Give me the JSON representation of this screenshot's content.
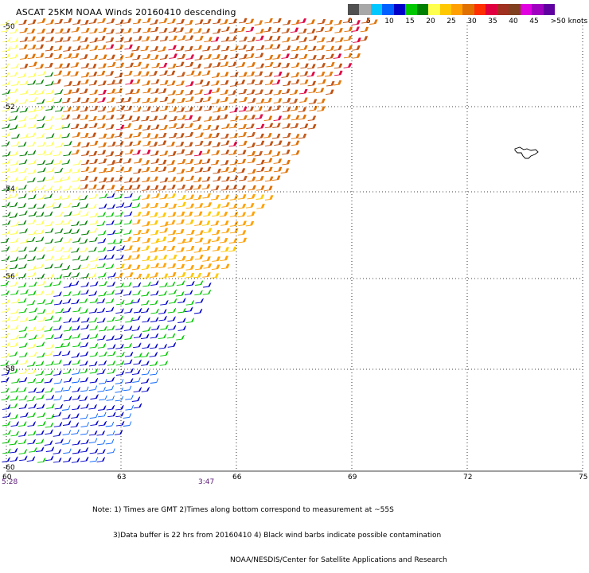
{
  "title": "ASCAT 25KM NOAA Winds 20160410 descending",
  "legend": {
    "units_label": ">50 knots",
    "labels": [
      "0",
      "5",
      "10",
      "15",
      "20",
      "25",
      "30",
      "35",
      "40",
      "45"
    ],
    "colors": [
      "#505050",
      "#a8a8a8",
      "#00c8ff",
      "#0060ff",
      "#0000c8",
      "#00c800",
      "#008000",
      "#ffff50",
      "#ffc800",
      "#ffa000",
      "#e07000",
      "#ff3000",
      "#e00040",
      "#a03020",
      "#804020",
      "#e000e0",
      "#a000c0",
      "#6000a0"
    ]
  },
  "axes": {
    "lon_labels": [
      "60",
      "63",
      "66",
      "69",
      "72",
      "75"
    ],
    "lat_labels": [
      "-50",
      "-52",
      "-54",
      "-56",
      "-58",
      "-60"
    ]
  },
  "times": {
    "left": "5:28",
    "middle": "3:47"
  },
  "notes": [
    "Note: 1) Times are GMT 2)Times along bottom correspond to measurement at ~55S",
    "3)Data buffer is 22 hrs from 20160410 4) Black wind barbs indicate possible contamination",
    "NOAA/NESDIS/Center for Satellite Applications and Research"
  ],
  "wind_fields": [
    {
      "region": "northeast",
      "speed_range_knots": "30-40",
      "color": "#e07000"
    },
    {
      "region": "northwest-edge",
      "speed_range_knots": "20-25",
      "color": "#ffff50"
    },
    {
      "region": "southwest",
      "speed_range_knots": "10-20",
      "color": "#00c800"
    },
    {
      "region": "south",
      "speed_range_knots": "5-15",
      "color": "#0000c8"
    }
  ]
}
